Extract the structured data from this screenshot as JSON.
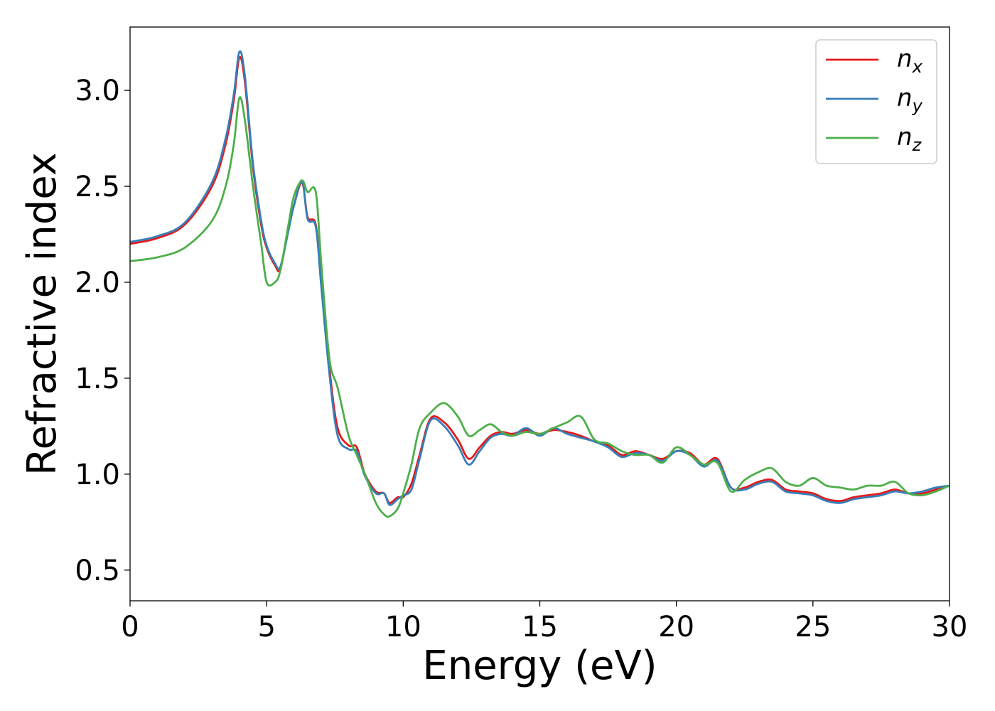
{
  "chart_data": {
    "type": "line",
    "title": "",
    "xlabel": "Energy (eV)",
    "ylabel": "Refractive index",
    "xlim": [
      0,
      30
    ],
    "ylim": [
      0.34,
      3.33
    ],
    "xticks": [
      0,
      5,
      10,
      15,
      20,
      25,
      30
    ],
    "yticks": [
      0.5,
      1.0,
      1.5,
      2.0,
      2.5,
      3.0
    ],
    "xtick_labels": [
      "0",
      "5",
      "10",
      "15",
      "20",
      "25",
      "30"
    ],
    "ytick_labels": [
      "0.5",
      "1.0",
      "1.5",
      "2.0",
      "2.5",
      "3.0"
    ],
    "grid": false,
    "legend": "top-right",
    "series": [
      {
        "name": "n",
        "sub": "x",
        "color": "#e41a1c",
        "x": [
          0,
          1,
          2,
          3,
          3.5,
          3.8,
          4,
          4.2,
          4.5,
          4.8,
          5,
          5.3,
          5.5,
          5.8,
          6,
          6.3,
          6.5,
          6.8,
          7,
          7.3,
          7.6,
          8,
          8.3,
          8.6,
          9,
          9.3,
          9.5,
          9.8,
          10,
          10.3,
          10.6,
          11,
          11.5,
          12,
          12.4,
          12.8,
          13.2,
          13.6,
          14,
          14.5,
          15,
          15.5,
          16,
          16.5,
          17,
          17.5,
          18,
          18.5,
          19,
          19.5,
          20,
          20.5,
          21,
          21.5,
          22,
          22.5,
          23,
          23.5,
          24,
          24.5,
          25,
          25.5,
          26,
          26.5,
          27,
          27.5,
          28,
          28.5,
          29,
          29.5,
          30
        ],
        "y": [
          2.2,
          2.23,
          2.3,
          2.5,
          2.72,
          2.95,
          3.17,
          3.05,
          2.6,
          2.3,
          2.18,
          2.09,
          2.07,
          2.28,
          2.4,
          2.52,
          2.34,
          2.3,
          2.0,
          1.55,
          1.24,
          1.15,
          1.14,
          1.0,
          0.91,
          0.9,
          0.85,
          0.88,
          0.88,
          0.95,
          1.1,
          1.29,
          1.27,
          1.18,
          1.08,
          1.14,
          1.2,
          1.22,
          1.21,
          1.23,
          1.21,
          1.23,
          1.22,
          1.2,
          1.17,
          1.15,
          1.1,
          1.12,
          1.1,
          1.08,
          1.12,
          1.11,
          1.05,
          1.08,
          0.93,
          0.93,
          0.96,
          0.97,
          0.92,
          0.91,
          0.9,
          0.87,
          0.86,
          0.88,
          0.89,
          0.9,
          0.92,
          0.9,
          0.9,
          0.92,
          0.94
        ]
      },
      {
        "name": "n",
        "sub": "y",
        "color": "#377eb8",
        "x": [
          0,
          1,
          2,
          3,
          3.5,
          3.8,
          4,
          4.2,
          4.5,
          4.8,
          5,
          5.3,
          5.5,
          5.8,
          6,
          6.3,
          6.5,
          6.8,
          7,
          7.3,
          7.6,
          8,
          8.3,
          8.6,
          9,
          9.3,
          9.5,
          9.8,
          10,
          10.3,
          10.6,
          11,
          11.5,
          12,
          12.4,
          12.8,
          13.2,
          13.6,
          14,
          14.5,
          15,
          15.5,
          16,
          16.5,
          17,
          17.5,
          18,
          18.5,
          19,
          19.5,
          20,
          20.5,
          21,
          21.5,
          22,
          22.5,
          23,
          23.5,
          24,
          24.5,
          25,
          25.5,
          26,
          26.5,
          27,
          27.5,
          28,
          28.5,
          29,
          29.5,
          30
        ],
        "y": [
          2.21,
          2.24,
          2.31,
          2.52,
          2.75,
          2.98,
          3.2,
          3.08,
          2.62,
          2.32,
          2.19,
          2.1,
          2.08,
          2.27,
          2.4,
          2.53,
          2.33,
          2.29,
          1.98,
          1.52,
          1.2,
          1.13,
          1.12,
          0.99,
          0.9,
          0.9,
          0.84,
          0.87,
          0.89,
          0.92,
          1.08,
          1.28,
          1.25,
          1.15,
          1.05,
          1.12,
          1.19,
          1.21,
          1.2,
          1.24,
          1.2,
          1.24,
          1.21,
          1.19,
          1.17,
          1.14,
          1.09,
          1.11,
          1.1,
          1.07,
          1.12,
          1.1,
          1.04,
          1.07,
          0.93,
          0.92,
          0.95,
          0.96,
          0.91,
          0.9,
          0.89,
          0.86,
          0.85,
          0.87,
          0.88,
          0.89,
          0.91,
          0.9,
          0.91,
          0.93,
          0.94
        ]
      },
      {
        "name": "n",
        "sub": "z",
        "color": "#4daf4a",
        "x": [
          0,
          1,
          2,
          3,
          3.5,
          3.8,
          4,
          4.2,
          4.5,
          4.8,
          5,
          5.3,
          5.5,
          5.8,
          6,
          6.3,
          6.5,
          6.8,
          7,
          7.3,
          7.6,
          8,
          8.3,
          8.6,
          9,
          9.3,
          9.5,
          9.8,
          10,
          10.3,
          10.6,
          11,
          11.5,
          12,
          12.4,
          12.8,
          13.2,
          13.6,
          14,
          14.5,
          15,
          15.5,
          16,
          16.5,
          17,
          17.5,
          18,
          18.5,
          19,
          19.5,
          20,
          20.5,
          21,
          21.5,
          22,
          22.5,
          23,
          23.5,
          24,
          24.5,
          25,
          25.5,
          26,
          26.5,
          27,
          27.5,
          28,
          28.5,
          29,
          29.5,
          30
        ],
        "y": [
          2.11,
          2.13,
          2.18,
          2.32,
          2.5,
          2.72,
          2.96,
          2.85,
          2.5,
          2.2,
          2.0,
          2.0,
          2.06,
          2.3,
          2.45,
          2.53,
          2.47,
          2.47,
          2.1,
          1.6,
          1.45,
          1.2,
          1.1,
          1.0,
          0.85,
          0.79,
          0.78,
          0.82,
          0.9,
          1.05,
          1.24,
          1.32,
          1.37,
          1.3,
          1.2,
          1.23,
          1.26,
          1.22,
          1.2,
          1.22,
          1.21,
          1.24,
          1.27,
          1.3,
          1.18,
          1.16,
          1.12,
          1.1,
          1.1,
          1.06,
          1.14,
          1.1,
          1.05,
          1.06,
          0.91,
          0.97,
          1.01,
          1.03,
          0.96,
          0.94,
          0.98,
          0.94,
          0.93,
          0.92,
          0.94,
          0.94,
          0.96,
          0.9,
          0.89,
          0.91,
          0.94
        ]
      }
    ]
  }
}
